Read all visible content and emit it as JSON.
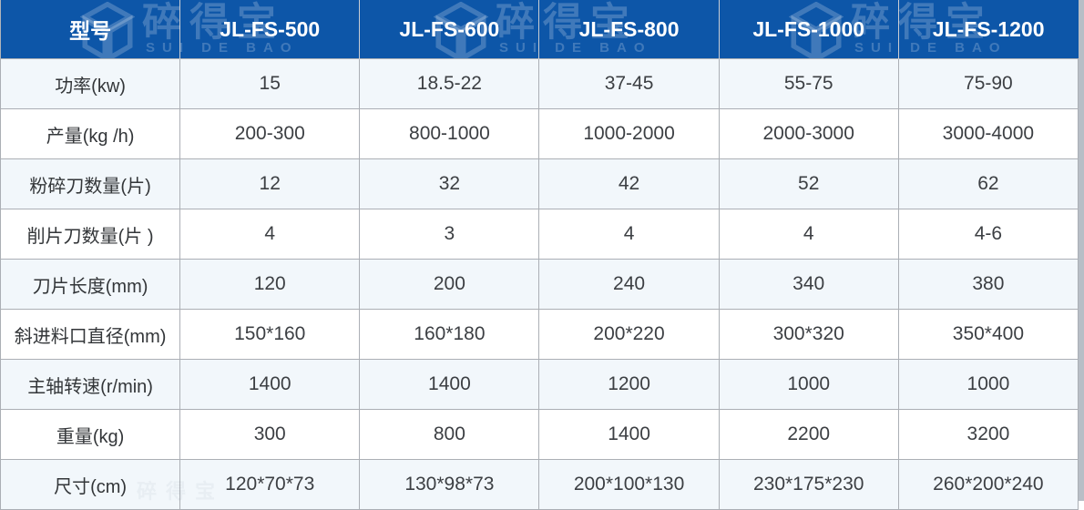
{
  "brand": {
    "logo_cn": "碎得宝",
    "logo_en": "SUI DE BAO"
  },
  "table": {
    "header": {
      "label": "型号",
      "models": [
        "JL-FS-500",
        "JL-FS-600",
        "JL-FS-800",
        "JL-FS-1000",
        "JL-FS-1200"
      ]
    },
    "rows": [
      {
        "label": "功率(kw)",
        "values": [
          "15",
          "18.5-22",
          "37-45",
          "55-75",
          "75-90"
        ]
      },
      {
        "label": "产量(kg /h)",
        "values": [
          "200-300",
          "800-1000",
          "1000-2000",
          "2000-3000",
          "3000-4000"
        ]
      },
      {
        "label": "粉碎刀数量(片)",
        "values": [
          "12",
          "32",
          "42",
          "52",
          "62"
        ]
      },
      {
        "label": "削片刀数量(片 )",
        "values": [
          "4",
          "3",
          "4",
          "4",
          "4-6"
        ]
      },
      {
        "label": "刀片长度(mm)",
        "values": [
          "120",
          "200",
          "240",
          "340",
          "380"
        ]
      },
      {
        "label": "斜进料口直径(mm)",
        "values": [
          "150*160",
          "160*180",
          "200*220",
          "300*320",
          "350*400"
        ]
      },
      {
        "label": "主轴转速(r/min)",
        "values": [
          "1400",
          "1400",
          "1200",
          "1000",
          "1000"
        ]
      },
      {
        "label": "重量(kg)",
        "values": [
          "300",
          "800",
          "1400",
          "2200",
          "3200"
        ]
      },
      {
        "label": "尺寸(cm)",
        "values": [
          "120*70*73",
          "130*98*73",
          "200*100*130",
          "230*175*230",
          "260*200*240"
        ]
      }
    ]
  },
  "colors": {
    "header_bg": "#0d56a8",
    "row_alt_bg": "#f2f7fb",
    "row_bg": "#ffffff",
    "border": "#abafb5",
    "header_text": "#ffffff",
    "body_text": "#3c3f43",
    "watermark": "rgba(255,255,255,0.21)"
  }
}
